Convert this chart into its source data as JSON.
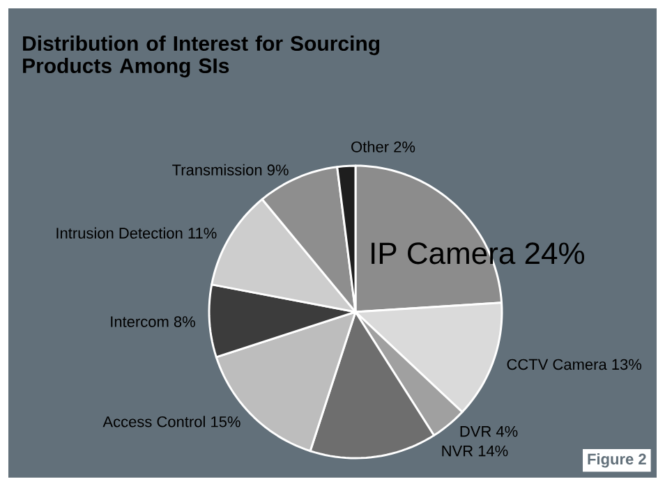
{
  "chart_data": {
    "type": "pie",
    "title": "Distribution of Interest for Sourcing Products Among SIs",
    "categories": [
      "IP Camera",
      "CCTV Camera",
      "DVR",
      "NVR",
      "Access Control",
      "Intercom",
      "Intrusion Detection",
      "Transmission",
      "Other"
    ],
    "values": [
      24,
      13,
      4,
      14,
      15,
      8,
      11,
      9,
      2
    ],
    "value_labels": [
      "24%",
      "13%",
      "4%",
      "14%",
      "15%",
      "8%",
      "11%",
      "9%",
      "2%"
    ],
    "colors": [
      "#8c8c8c",
      "#dadada",
      "#a0a0a0",
      "#6e6e6e",
      "#bdbdbd",
      "#3c3c3c",
      "#cdcdcd",
      "#8e8e8e",
      "#1e1e1e"
    ],
    "annotations": [
      "Figure 2"
    ]
  }
}
